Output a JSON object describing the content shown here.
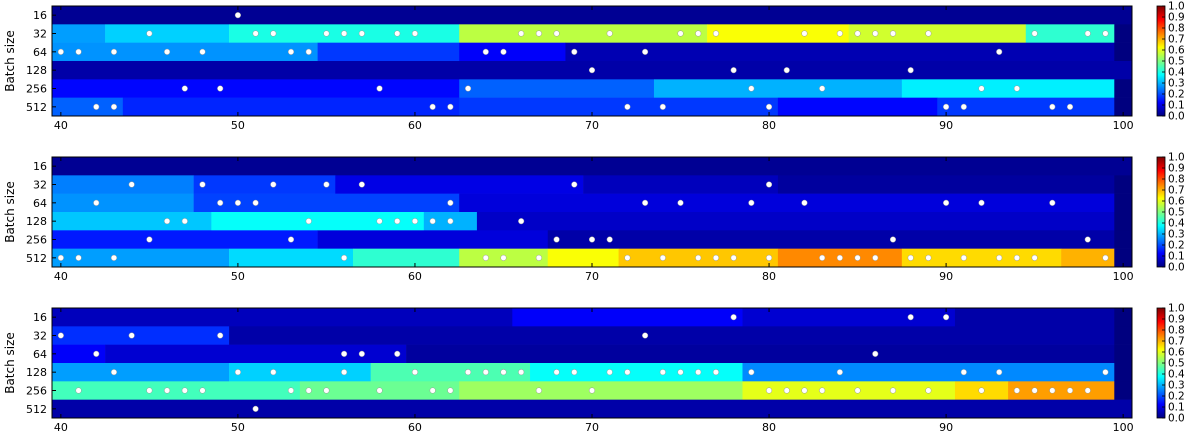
{
  "colormap": "jet",
  "colormap_stops": [
    "#00007f",
    "#0000ff",
    "#007fff",
    "#00ffff",
    "#7fff7f",
    "#ffff00",
    "#ff7f00",
    "#ff0000",
    "#7f0000"
  ],
  "marker_color": "#ffffff",
  "chart_data": [
    {
      "type": "heatmap",
      "ylabel": "Batch size",
      "xlim": [
        39.5,
        100.5
      ],
      "xticks": [
        40,
        50,
        60,
        70,
        80,
        90,
        100
      ],
      "rows": [
        "16",
        "32",
        "64",
        "128",
        "256",
        "512"
      ],
      "colorbar": {
        "range": [
          0.0,
          1.0
        ],
        "ticks": [
          "1.0",
          "0.9",
          "0.8",
          "0.7",
          "0.6",
          "0.5",
          "0.4",
          "0.3",
          "0.2",
          "0.1",
          "0.0"
        ]
      },
      "grid": false,
      "segments": [
        [
          [
            40,
            100,
            0.02
          ]
        ],
        [
          [
            40,
            42,
            0.28
          ],
          [
            43,
            49,
            0.33
          ],
          [
            50,
            62,
            0.4
          ],
          [
            63,
            76,
            0.56
          ],
          [
            77,
            84,
            0.62
          ],
          [
            85,
            94,
            0.58
          ],
          [
            95,
            99,
            0.42
          ],
          [
            100,
            100,
            0.0
          ]
        ],
        [
          [
            40,
            54,
            0.27
          ],
          [
            55,
            62,
            0.18
          ],
          [
            63,
            68,
            0.12
          ],
          [
            69,
            99,
            0.05
          ],
          [
            100,
            100,
            0.0
          ]
        ],
        [
          [
            40,
            100,
            0.04
          ]
        ],
        [
          [
            40,
            62,
            0.13
          ],
          [
            63,
            73,
            0.22
          ],
          [
            74,
            87,
            0.3
          ],
          [
            88,
            99,
            0.36
          ],
          [
            100,
            100,
            0.0
          ]
        ],
        [
          [
            40,
            43,
            0.22
          ],
          [
            44,
            62,
            0.16
          ],
          [
            63,
            80,
            0.18
          ],
          [
            81,
            89,
            0.13
          ],
          [
            90,
            99,
            0.18
          ],
          [
            100,
            100,
            0.0
          ]
        ]
      ],
      "markers": [
        [
          50
        ],
        [
          45,
          51,
          52,
          55,
          56,
          57,
          59,
          60,
          66,
          67,
          68,
          71,
          75,
          76,
          77,
          82,
          84,
          85,
          86,
          87,
          89,
          95,
          98,
          99
        ],
        [
          40,
          41,
          43,
          46,
          48,
          53,
          54,
          64,
          65,
          69,
          73,
          93
        ],
        [
          70,
          78,
          81,
          88
        ],
        [
          47,
          49,
          58,
          63,
          79,
          83,
          92,
          94
        ],
        [
          42,
          43,
          61,
          62,
          72,
          74,
          80,
          90,
          91,
          96,
          97
        ]
      ]
    },
    {
      "type": "heatmap",
      "ylabel": "Batch size",
      "xlim": [
        39.5,
        100.5
      ],
      "xticks": [
        40,
        50,
        60,
        70,
        80,
        90,
        100
      ],
      "rows": [
        "16",
        "32",
        "64",
        "128",
        "256",
        "512"
      ],
      "colorbar": {
        "range": [
          0.0,
          1.0
        ],
        "ticks": [
          "1.0",
          "0.9",
          "0.8",
          "0.7",
          "0.6",
          "0.5",
          "0.4",
          "0.3",
          "0.2",
          "0.1",
          "0.0"
        ]
      },
      "grid": false,
      "segments": [
        [
          [
            40,
            100,
            0.02
          ]
        ],
        [
          [
            40,
            47,
            0.25
          ],
          [
            48,
            55,
            0.18
          ],
          [
            56,
            69,
            0.1
          ],
          [
            70,
            80,
            0.06
          ],
          [
            81,
            99,
            0.03
          ],
          [
            100,
            100,
            0.0
          ]
        ],
        [
          [
            40,
            47,
            0.27
          ],
          [
            48,
            62,
            0.19
          ],
          [
            63,
            99,
            0.09
          ],
          [
            100,
            100,
            0.0
          ]
        ],
        [
          [
            40,
            48,
            0.32
          ],
          [
            49,
            60,
            0.38
          ],
          [
            61,
            63,
            0.3
          ],
          [
            64,
            99,
            0.07
          ],
          [
            100,
            100,
            0.0
          ]
        ],
        [
          [
            40,
            54,
            0.15
          ],
          [
            55,
            67,
            0.09
          ],
          [
            68,
            99,
            0.04
          ],
          [
            100,
            100,
            0.0
          ]
        ],
        [
          [
            40,
            49,
            0.28
          ],
          [
            50,
            56,
            0.34
          ],
          [
            57,
            62,
            0.42
          ],
          [
            63,
            67,
            0.56
          ],
          [
            68,
            71,
            0.62
          ],
          [
            72,
            80,
            0.68
          ],
          [
            81,
            87,
            0.74
          ],
          [
            88,
            96,
            0.66
          ],
          [
            97,
            99,
            0.7
          ],
          [
            100,
            100,
            0.0
          ]
        ]
      ],
      "markers": [
        [],
        [
          44,
          48,
          52,
          55,
          57,
          69,
          80
        ],
        [
          42,
          49,
          50,
          51,
          62,
          73,
          75,
          79,
          82,
          90,
          92,
          96
        ],
        [
          46,
          47,
          54,
          58,
          59,
          60,
          61,
          62,
          66
        ],
        [
          45,
          53,
          68,
          70,
          71,
          87,
          98
        ],
        [
          40,
          41,
          43,
          56,
          64,
          65,
          67,
          72,
          74,
          76,
          77,
          78,
          80,
          83,
          84,
          85,
          86,
          88,
          89,
          91,
          93,
          94,
          95,
          99
        ]
      ]
    },
    {
      "type": "heatmap",
      "ylabel": "Batch size",
      "xlim": [
        39.5,
        100.5
      ],
      "xticks": [
        40,
        50,
        60,
        70,
        80,
        90,
        100
      ],
      "rows": [
        "16",
        "32",
        "64",
        "128",
        "256",
        "512"
      ],
      "colorbar": {
        "range": [
          0.0,
          1.0
        ],
        "ticks": [
          "1.0",
          "0.9",
          "0.8",
          "0.7",
          "0.6",
          "0.5",
          "0.4",
          "0.3",
          "0.2",
          "0.1",
          "0.0"
        ]
      },
      "grid": false,
      "segments": [
        [
          [
            40,
            65,
            0.06
          ],
          [
            66,
            78,
            0.12
          ],
          [
            79,
            90,
            0.08
          ],
          [
            91,
            99,
            0.04
          ],
          [
            100,
            100,
            0.0
          ]
        ],
        [
          [
            40,
            49,
            0.17
          ],
          [
            50,
            99,
            0.04
          ],
          [
            100,
            100,
            0.0
          ]
        ],
        [
          [
            40,
            42,
            0.12
          ],
          [
            43,
            59,
            0.08
          ],
          [
            60,
            99,
            0.03
          ],
          [
            100,
            100,
            0.0
          ]
        ],
        [
          [
            40,
            49,
            0.28
          ],
          [
            50,
            57,
            0.33
          ],
          [
            58,
            66,
            0.45
          ],
          [
            67,
            78,
            0.38
          ],
          [
            79,
            99,
            0.26
          ],
          [
            100,
            100,
            0.0
          ]
        ],
        [
          [
            40,
            53,
            0.44
          ],
          [
            54,
            62,
            0.48
          ],
          [
            63,
            78,
            0.53
          ],
          [
            79,
            90,
            0.6
          ],
          [
            91,
            93,
            0.66
          ],
          [
            94,
            99,
            0.72
          ],
          [
            100,
            100,
            0.0
          ]
        ],
        [
          [
            40,
            100,
            0.04
          ]
        ]
      ],
      "markers": [
        [
          78,
          88,
          90
        ],
        [
          40,
          44,
          49,
          73
        ],
        [
          42,
          56,
          57,
          59,
          86
        ],
        [
          43,
          50,
          52,
          56,
          60,
          63,
          64,
          65,
          66,
          68,
          69,
          71,
          72,
          74,
          75,
          76,
          77,
          79,
          84,
          91,
          93,
          99
        ],
        [
          41,
          45,
          46,
          47,
          48,
          53,
          54,
          55,
          58,
          61,
          62,
          67,
          70,
          80,
          81,
          82,
          83,
          85,
          87,
          89,
          92,
          94,
          95,
          96,
          97,
          98
        ],
        [
          51
        ]
      ]
    }
  ]
}
